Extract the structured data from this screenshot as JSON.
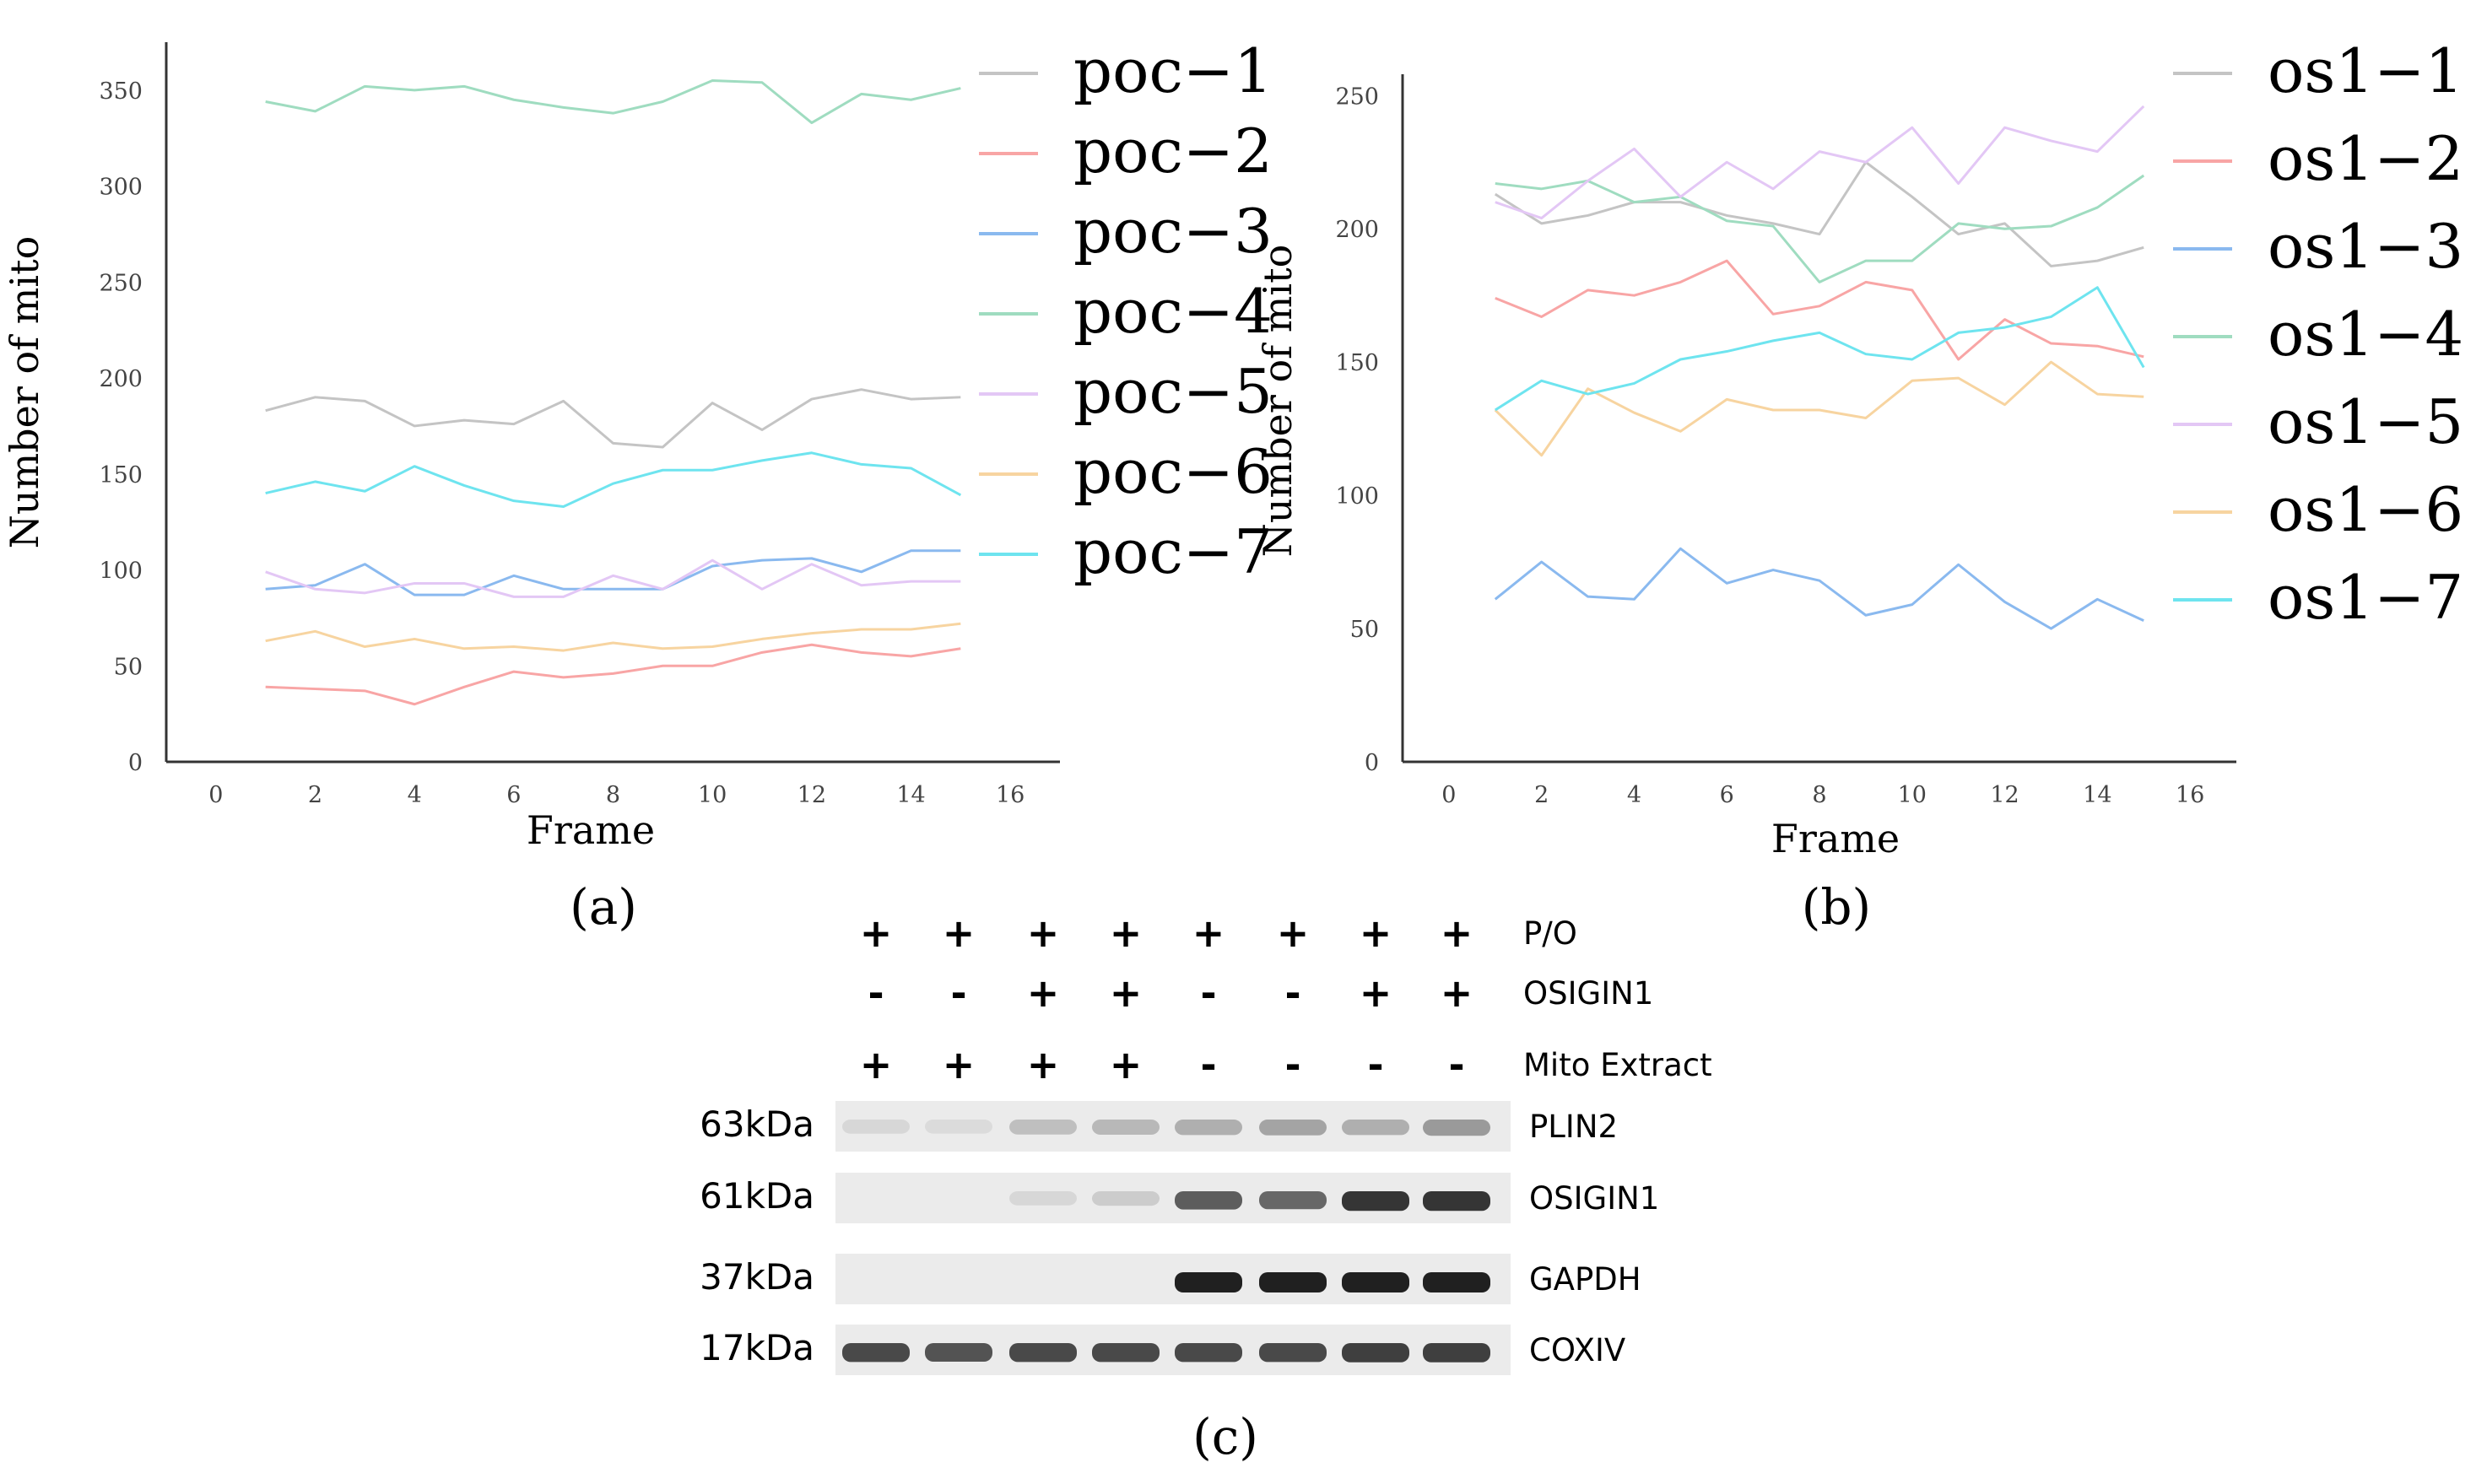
{
  "chart_data": [
    {
      "type": "line",
      "id": "a",
      "panel_label": "(a)",
      "title": "",
      "xlabel": "Frame",
      "ylabel": "Number of mito",
      "xlim": [
        -1,
        17
      ],
      "ylim": [
        0,
        375
      ],
      "xticks": [
        0,
        2,
        4,
        6,
        8,
        10,
        12,
        14,
        16
      ],
      "yticks": [
        0,
        50,
        100,
        150,
        200,
        250,
        300,
        350
      ],
      "legend_position": "top-right",
      "x": [
        1,
        2,
        3,
        4,
        5,
        6,
        7,
        8,
        9,
        10,
        11,
        12,
        13,
        14,
        15
      ],
      "series": [
        {
          "name": "poc−1",
          "color": "#c4c4c4",
          "values": [
            183,
            190,
            188,
            175,
            178,
            176,
            188,
            166,
            164,
            187,
            173,
            189,
            194,
            189,
            190
          ]
        },
        {
          "name": "poc−2",
          "color": "#f8a5a5",
          "values": [
            39,
            38,
            37,
            30,
            39,
            47,
            44,
            46,
            50,
            50,
            57,
            61,
            57,
            55,
            59
          ]
        },
        {
          "name": "poc−3",
          "color": "#8ab9ef",
          "values": [
            90,
            92,
            103,
            87,
            87,
            97,
            90,
            90,
            90,
            102,
            105,
            106,
            99,
            110,
            110
          ]
        },
        {
          "name": "poc−4",
          "color": "#9fdcc0",
          "values": [
            344,
            339,
            352,
            350,
            352,
            345,
            341,
            338,
            344,
            355,
            354,
            333,
            348,
            345,
            351
          ]
        },
        {
          "name": "poc−5",
          "color": "#e3c7f5",
          "values": [
            99,
            90,
            88,
            93,
            93,
            86,
            86,
            97,
            90,
            105,
            90,
            103,
            92,
            94,
            94
          ]
        },
        {
          "name": "poc−6",
          "color": "#f7d4a0",
          "values": [
            63,
            68,
            60,
            64,
            59,
            60,
            58,
            62,
            59,
            60,
            64,
            67,
            69,
            69,
            72
          ]
        },
        {
          "name": "poc−7",
          "color": "#6ee4ef",
          "values": [
            140,
            146,
            141,
            154,
            144,
            136,
            133,
            145,
            152,
            152,
            157,
            161,
            155,
            153,
            139
          ]
        }
      ]
    },
    {
      "type": "line",
      "id": "b",
      "panel_label": "(b)",
      "title": "",
      "xlabel": "Frame",
      "ylabel": "Number of mito",
      "xlim": [
        -1,
        17
      ],
      "ylim": [
        0,
        258
      ],
      "xticks": [
        0,
        2,
        4,
        6,
        8,
        10,
        12,
        14,
        16
      ],
      "yticks": [
        0,
        50,
        100,
        150,
        200,
        250
      ],
      "legend_position": "top-right",
      "x": [
        1,
        2,
        3,
        4,
        5,
        6,
        7,
        8,
        9,
        10,
        11,
        12,
        13,
        14,
        15
      ],
      "series": [
        {
          "name": "os1−1",
          "color": "#c4c4c4",
          "values": [
            213,
            202,
            205,
            210,
            210,
            205,
            202,
            198,
            225,
            212,
            198,
            202,
            186,
            188,
            193
          ]
        },
        {
          "name": "os1−2",
          "color": "#f8a5a5",
          "values": [
            174,
            167,
            177,
            175,
            180,
            188,
            168,
            171,
            180,
            177,
            151,
            166,
            157,
            156,
            152
          ]
        },
        {
          "name": "os1−3",
          "color": "#8ab9ef",
          "values": [
            61,
            75,
            62,
            61,
            80,
            67,
            72,
            68,
            55,
            59,
            74,
            60,
            50,
            61,
            53
          ]
        },
        {
          "name": "os1−4",
          "color": "#9fdcc0",
          "values": [
            217,
            215,
            218,
            210,
            212,
            203,
            201,
            180,
            188,
            188,
            202,
            200,
            201,
            208,
            220
          ]
        },
        {
          "name": "os1−5",
          "color": "#e3c7f5",
          "values": [
            210,
            204,
            218,
            230,
            212,
            225,
            215,
            229,
            225,
            238,
            217,
            238,
            233,
            229,
            246
          ]
        },
        {
          "name": "os1−6",
          "color": "#f7d4a0",
          "values": [
            132,
            115,
            140,
            131,
            124,
            136,
            132,
            132,
            129,
            143,
            144,
            134,
            150,
            138,
            137
          ]
        },
        {
          "name": "os1−7",
          "color": "#6ee4ef",
          "values": [
            132,
            143,
            138,
            142,
            151,
            154,
            158,
            161,
            153,
            151,
            161,
            163,
            167,
            178,
            148
          ]
        }
      ]
    }
  ],
  "blot": {
    "panel_label": "(c)",
    "row_labels": [
      "P/O",
      "OSIGIN1",
      "Mito Extract"
    ],
    "rows": [
      [
        "+",
        "+",
        "+",
        "+",
        "+",
        "+",
        "+",
        "+"
      ],
      [
        "-",
        "-",
        "+",
        "+",
        "-",
        "-",
        "+",
        "+"
      ],
      [
        "+",
        "+",
        "+",
        "+",
        "-",
        "-",
        "-",
        "-"
      ]
    ],
    "bands": [
      {
        "name": "PLIN2",
        "size": "63kDa",
        "intensities": [
          0.1,
          0.08,
          0.22,
          0.25,
          0.3,
          0.35,
          0.3,
          0.4
        ]
      },
      {
        "name": "OSIGIN1",
        "size": "61kDa",
        "intensities": [
          0,
          0,
          0.1,
          0.15,
          0.7,
          0.65,
          0.9,
          0.9
        ]
      },
      {
        "name": "GAPDH",
        "size": "37kDa",
        "intensities": [
          0,
          0,
          0,
          0,
          1,
          1,
          1,
          1
        ]
      },
      {
        "name": "COXIV",
        "size": "17kDa",
        "intensities": [
          0.8,
          0.75,
          0.8,
          0.8,
          0.8,
          0.8,
          0.85,
          0.85
        ]
      }
    ]
  }
}
